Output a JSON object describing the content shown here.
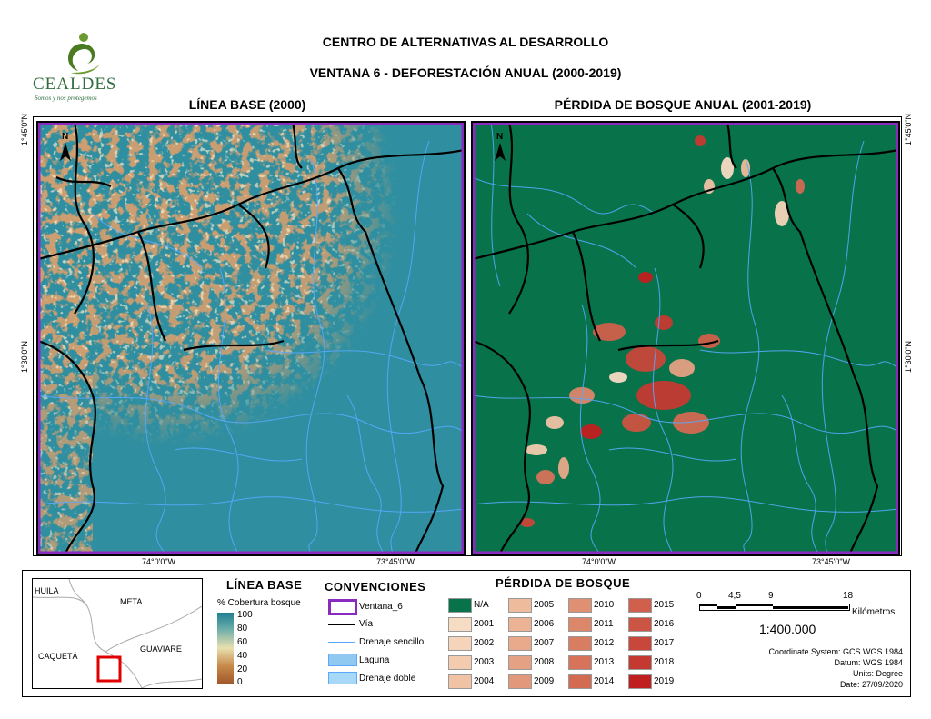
{
  "header": {
    "org": "CENTRO DE ALTERNATIVAS AL DESARROLLO",
    "subtitle": "VENTANA 6 - DEFORESTACIÓN ANUAL (2000-2019)",
    "logo_text": "CEALDES",
    "logo_tagline": "Somos y nos protegemos"
  },
  "panels": {
    "left_title": "LÍNEA BASE (2000)",
    "right_title": "PÉRDIDA DE BOSQUE ANUAL (2001-2019)",
    "north_label": "N",
    "lat_top": "1°45'0\"N",
    "lat_mid": "1°30'0\"N",
    "lon_left": "74°0'0\"W",
    "lon_right": "73°45'0\"W"
  },
  "inset": {
    "labels": [
      "HUILA",
      "META",
      "CAQUETÁ",
      "GUAVIARE"
    ]
  },
  "linea_base": {
    "title": "LÍNEA BASE",
    "subtitle": "% Cobertura bosque",
    "ticks": [
      "100",
      "80",
      "60",
      "40",
      "20",
      "0"
    ]
  },
  "convenciones": {
    "title": "CONVENCIONES",
    "items": [
      "Ventana_6",
      "Vía",
      "Drenaje sencillo",
      "Laguna",
      "Drenaje doble"
    ]
  },
  "perdida": {
    "title": "PÉRDIDA DE BOSQUE",
    "na_label": "N/A",
    "years": [
      {
        "label": "2001",
        "color": "#f7dcc4"
      },
      {
        "label": "2002",
        "color": "#f5d4ba"
      },
      {
        "label": "2003",
        "color": "#f3ccb0"
      },
      {
        "label": "2004",
        "color": "#f0c3a5"
      },
      {
        "label": "2005",
        "color": "#eebb9c"
      },
      {
        "label": "2006",
        "color": "#ebb294"
      },
      {
        "label": "2007",
        "color": "#e8aa8b"
      },
      {
        "label": "2008",
        "color": "#e5a183"
      },
      {
        "label": "2009",
        "color": "#e2987a"
      },
      {
        "label": "2010",
        "color": "#df8f72"
      },
      {
        "label": "2011",
        "color": "#dc876a"
      },
      {
        "label": "2012",
        "color": "#d97d62"
      },
      {
        "label": "2013",
        "color": "#d6735a"
      },
      {
        "label": "2014",
        "color": "#d36a52"
      },
      {
        "label": "2015",
        "color": "#d0604b"
      },
      {
        "label": "2016",
        "color": "#cc5442"
      },
      {
        "label": "2017",
        "color": "#c8473a"
      },
      {
        "label": "2018",
        "color": "#c43a31"
      },
      {
        "label": "2019",
        "color": "#c01f1f"
      }
    ]
  },
  "scale": {
    "ticks": [
      "0",
      "4,5",
      "9",
      "18"
    ],
    "unit": "Kilómetros",
    "ratio": "1:400.000"
  },
  "metadata": {
    "lines": [
      "Coordinate System: GCS WGS 1984",
      "Datum: WGS 1984",
      "Units: Degree",
      "Date: 27/09/2020"
    ]
  },
  "colors": {
    "forest_green": "#08734a",
    "teal_base": "#2f8fa0",
    "brown": "#a0582a",
    "window_border": "#8a2bbf",
    "river": "#5aa8ff",
    "laguna": "#8fc8f0"
  }
}
